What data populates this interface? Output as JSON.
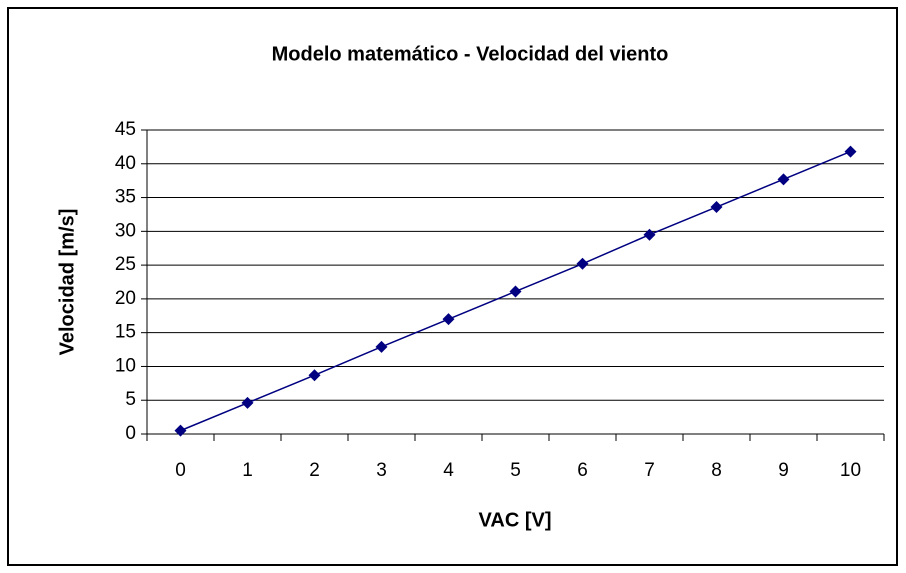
{
  "chart_data": {
    "type": "line",
    "title": "Modelo matemático - Velocidad del viento",
    "x_label": "VAC [V]",
    "y_label": "Velocidad [m/s]",
    "categories": [
      "0",
      "1",
      "2",
      "3",
      "4",
      "5",
      "6",
      "7",
      "8",
      "9",
      "10"
    ],
    "values": [
      0.5,
      4.6,
      8.7,
      12.9,
      17.0,
      21.1,
      25.2,
      29.5,
      33.6,
      37.7,
      41.8
    ],
    "color": "#000080",
    "ylim": [
      0,
      45
    ],
    "yticks": [
      0,
      5,
      10,
      15,
      20,
      25,
      30,
      35,
      40,
      45
    ],
    "grid": true
  }
}
